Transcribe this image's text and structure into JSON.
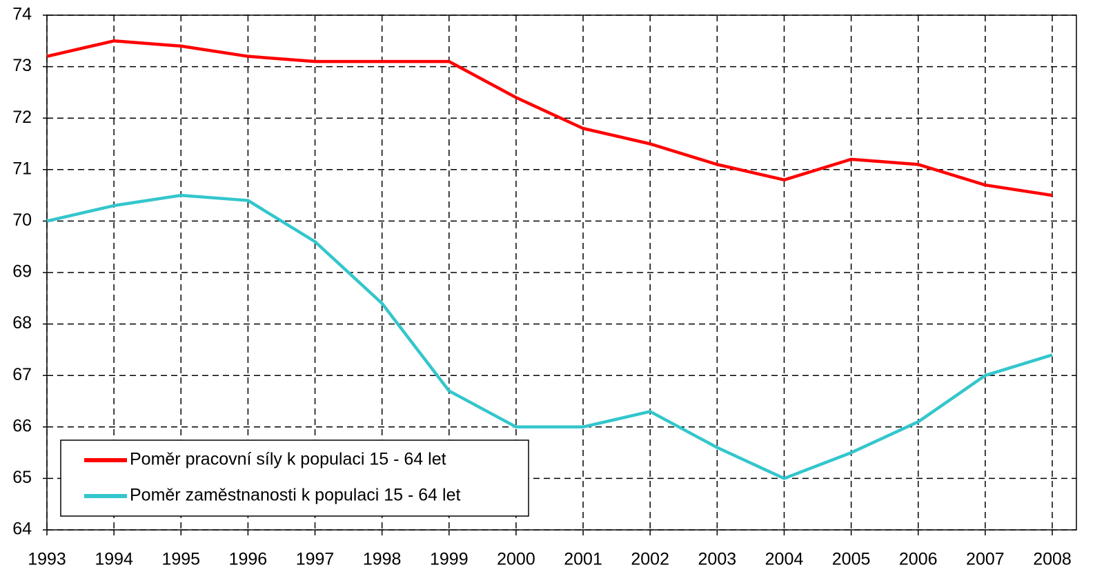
{
  "chart_data": {
    "type": "line",
    "x": [
      1993,
      1994,
      1995,
      1996,
      1997,
      1998,
      1999,
      2000,
      2001,
      2002,
      2003,
      2004,
      2005,
      2006,
      2007,
      2008
    ],
    "series": [
      {
        "name": "Poměr pracovní síly k populaci 15 - 64 let",
        "color": "#ff0000",
        "values": [
          73.2,
          73.5,
          73.4,
          73.2,
          73.1,
          73.1,
          73.1,
          72.4,
          71.8,
          71.5,
          71.1,
          70.8,
          71.2,
          71.1,
          70.7,
          70.5
        ]
      },
      {
        "name": "Poměr zaměstnanosti k populaci 15 - 64 let",
        "color": "#33c6cc",
        "values": [
          70.0,
          70.3,
          70.5,
          70.4,
          69.6,
          68.4,
          66.7,
          66.0,
          66.0,
          66.3,
          65.6,
          65.0,
          65.5,
          66.1,
          67.0,
          67.4
        ]
      }
    ],
    "xlim": [
      1993,
      2008
    ],
    "xticks": [
      1993,
      1994,
      1995,
      1996,
      1997,
      1998,
      1999,
      2000,
      2001,
      2002,
      2003,
      2004,
      2005,
      2006,
      2007,
      2008
    ],
    "ylim": [
      64,
      74
    ],
    "yticks": [
      64,
      65,
      66,
      67,
      68,
      69,
      70,
      71,
      72,
      73,
      74
    ],
    "grid": true,
    "legend": "lower left"
  }
}
